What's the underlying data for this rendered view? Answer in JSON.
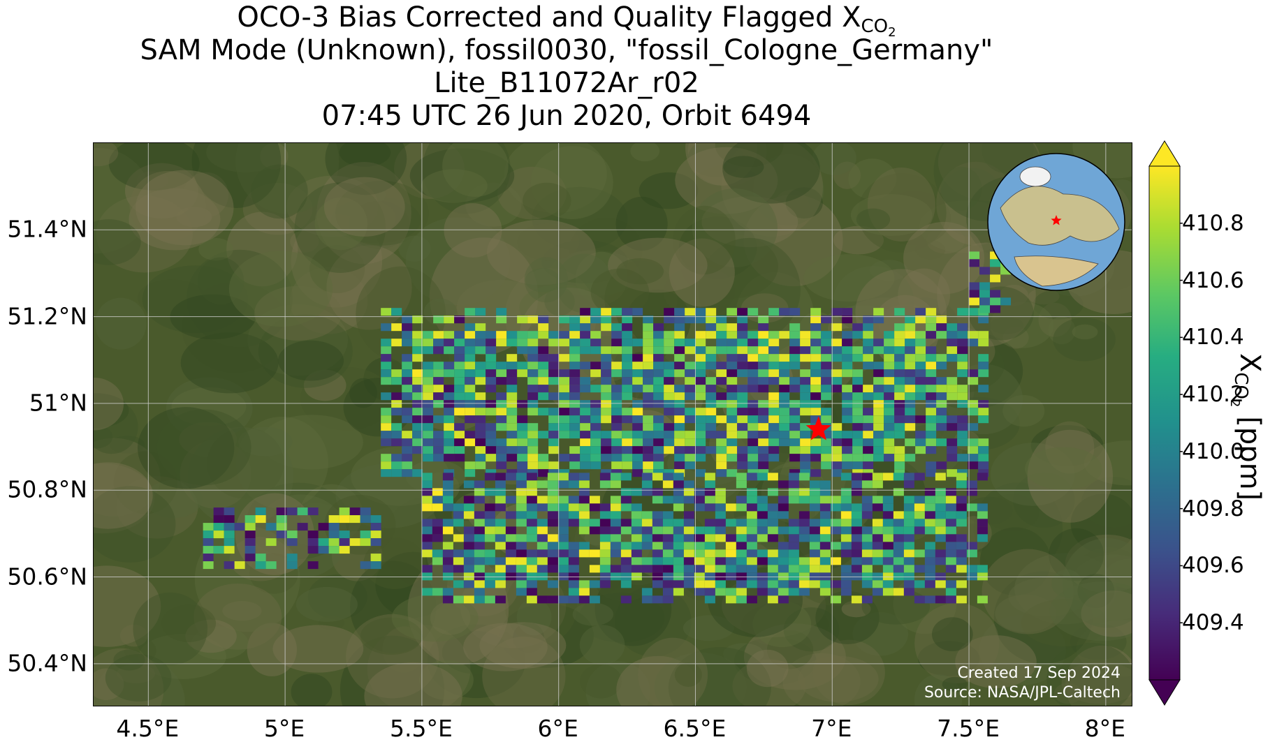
{
  "title": {
    "line1_prefix": "OCO-3 Bias Corrected and Quality Flagged X",
    "line1_sub": "CO",
    "line1_subsub": "2",
    "line2": "SAM Mode (Unknown), fossil0030, \"fossil_Cologne_Germany\"",
    "line3": "Lite_B11072Ar_r02",
    "line4": "07:45 UTC 26 Jun 2020, Orbit 6494"
  },
  "credits": {
    "created": "Created 17 Sep 2024",
    "source": "Source: NASA/JPL-Caltech"
  },
  "chart_data": {
    "type": "heatmap",
    "x_axis": {
      "range": [
        4.3,
        8.1
      ],
      "ticks": [
        4.5,
        5.0,
        5.5,
        6.0,
        6.5,
        7.0,
        7.5,
        8.0
      ],
      "tick_labels": [
        "4.5°E",
        "5°E",
        "5.5°E",
        "6°E",
        "6.5°E",
        "7°E",
        "7.5°E",
        "8°E"
      ]
    },
    "y_axis": {
      "range": [
        50.3,
        51.6
      ],
      "ticks": [
        50.4,
        50.6,
        50.8,
        51.0,
        51.2,
        51.4
      ],
      "tick_labels": [
        "50.4°N",
        "50.6°N",
        "50.8°N",
        "51°N",
        "51.2°N",
        "51.4°N"
      ]
    },
    "grid": true,
    "target": {
      "name": "fossil_Cologne_Germany",
      "lon": 6.95,
      "lat": 50.94,
      "marker": "red-star"
    },
    "colorbar": {
      "label_prefix": "X",
      "label_sub": "CO",
      "label_subsub": "2",
      "label_suffix": " [ppm]",
      "range": [
        409.2,
        411.0
      ],
      "ticks": [
        409.4,
        409.6,
        409.8,
        410.0,
        410.2,
        410.4,
        410.6,
        410.8
      ],
      "tick_labels": [
        "409.4",
        "409.6",
        "409.8",
        "410.0",
        "410.2",
        "410.4",
        "410.6",
        "410.8"
      ],
      "colormap": "viridis",
      "extend": "both"
    },
    "swaths": [
      {
        "name": "swath-north",
        "lon_range": [
          5.35,
          7.55
        ],
        "lat_range": [
          50.84,
          51.22
        ]
      },
      {
        "name": "swath-south",
        "lon_range": [
          5.5,
          7.55
        ],
        "lat_range": [
          50.54,
          50.84
        ]
      },
      {
        "name": "swath-west-fragment",
        "lon_range": [
          4.7,
          5.35
        ],
        "lat_range": [
          50.63,
          50.76
        ]
      },
      {
        "name": "swath-northeast-strip",
        "lon_range": [
          7.5,
          7.65
        ],
        "lat_range": [
          51.22,
          51.35
        ]
      }
    ]
  },
  "inset_globe": {
    "center": "Europe",
    "marker": "red-star"
  },
  "colors": {
    "map_base": "#4a5a2c",
    "grid": "#d0d0d0",
    "star": "#ff0000",
    "credit_text": "#ffffff"
  }
}
